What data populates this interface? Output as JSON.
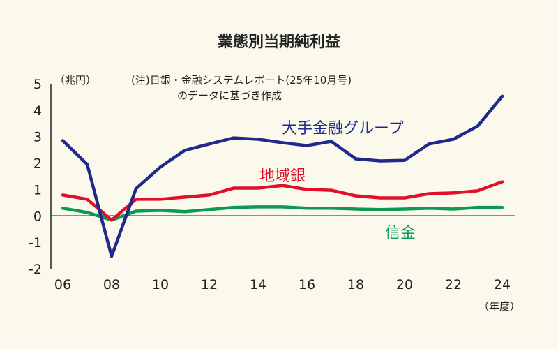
{
  "chart_data": {
    "type": "line",
    "title": "業態別当期純利益",
    "ylabel": "（兆円）",
    "xlabel": "（年度）",
    "note": [
      "(注)日銀・金融システムレポート(25年10月号)",
      "のデータに基づき作成"
    ],
    "x": [
      2006,
      2007,
      2008,
      2009,
      2010,
      2011,
      2012,
      2013,
      2014,
      2015,
      2016,
      2017,
      2018,
      2019,
      2020,
      2021,
      2022,
      2023,
      2024
    ],
    "xticks": [
      "06",
      "08",
      "10",
      "12",
      "14",
      "16",
      "18",
      "20",
      "22",
      "24"
    ],
    "yticks": [
      "5",
      "4",
      "3",
      "2",
      "1",
      "0",
      "-1",
      "-2"
    ],
    "ylim": [
      -2,
      5
    ],
    "grid": false,
    "series": [
      {
        "name": "大手金融グループ",
        "color": "#1f2a8a",
        "values": [
          2.85,
          1.95,
          -1.53,
          1.03,
          1.85,
          2.48,
          2.72,
          2.95,
          2.9,
          2.77,
          2.66,
          2.82,
          2.16,
          2.08,
          2.1,
          2.72,
          2.9,
          3.4,
          4.53
        ]
      },
      {
        "name": "地域銀",
        "color": "#e0102a",
        "values": [
          0.79,
          0.63,
          -0.16,
          0.63,
          0.63,
          0.71,
          0.79,
          1.05,
          1.05,
          1.15,
          1.0,
          0.97,
          0.76,
          0.68,
          0.68,
          0.84,
          0.87,
          0.95,
          1.29
        ]
      },
      {
        "name": "信金",
        "color": "#0a9a50",
        "values": [
          0.29,
          0.13,
          -0.16,
          0.18,
          0.21,
          0.16,
          0.24,
          0.32,
          0.34,
          0.34,
          0.29,
          0.29,
          0.26,
          0.24,
          0.26,
          0.29,
          0.26,
          0.32,
          0.32
        ]
      }
    ]
  }
}
